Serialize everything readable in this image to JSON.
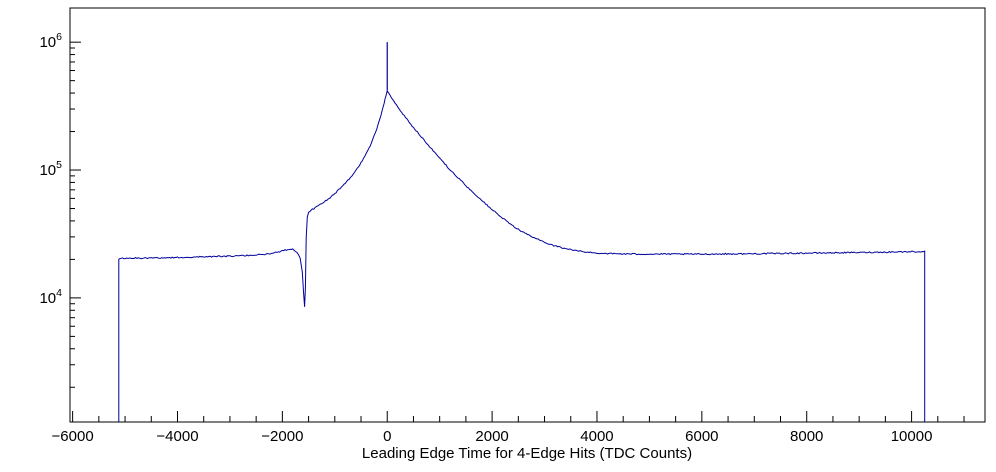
{
  "chart_data": {
    "type": "line",
    "title": "",
    "xlabel": "Leading Edge Time for 4-Edge Hits (TDC Counts)",
    "ylabel": "",
    "y_log": true,
    "xlim": [
      -6050,
      11400
    ],
    "ylim": [
      1070,
      1850000
    ],
    "grid": false,
    "legend": "none",
    "line_color": "#00009a",
    "frame_color": "#000000",
    "x_ticks": [
      {
        "v": -6000,
        "label": "−6000"
      },
      {
        "v": -4000,
        "label": "−4000"
      },
      {
        "v": -2000,
        "label": "−2000"
      },
      {
        "v": 0,
        "label": "0"
      },
      {
        "v": 2000,
        "label": "2000"
      },
      {
        "v": 4000,
        "label": "4000"
      },
      {
        "v": 6000,
        "label": "6000"
      },
      {
        "v": 8000,
        "label": "8000"
      },
      {
        "v": 10000,
        "label": "10000"
      }
    ],
    "x_minor_step": 500,
    "y_ticks": [
      {
        "v": 10000,
        "mant": "10",
        "exp": "4"
      },
      {
        "v": 100000,
        "mant": "10",
        "exp": "5"
      },
      {
        "v": 1000000,
        "mant": "10",
        "exp": "6"
      }
    ],
    "spike": {
      "x": 0,
      "y": 1000000
    },
    "series": [
      {
        "name": "leading-edge-time-histogram",
        "x": [
          -5120,
          -5000,
          -4600,
          -4200,
          -3800,
          -3400,
          -3000,
          -2600,
          -2300,
          -2100,
          -1950,
          -1850,
          -1780,
          -1720,
          -1660,
          -1620,
          -1595,
          -1575,
          -1560,
          -1545,
          -1525,
          -1500,
          -1450,
          -1380,
          -1300,
          -1200,
          -1100,
          -1000,
          -900,
          -800,
          -700,
          -600,
          -500,
          -400,
          -300,
          -200,
          -120,
          -60,
          -20,
          0,
          30,
          80,
          150,
          250,
          350,
          450,
          550,
          700,
          850,
          1000,
          1200,
          1400,
          1600,
          1800,
          2000,
          2200,
          2400,
          2600,
          2800,
          3000,
          3200,
          3400,
          3600,
          3800,
          4000,
          4400,
          4800,
          5400,
          6000,
          6800,
          7600,
          8400,
          9200,
          10000,
          10250
        ],
        "y": [
          20200,
          20400,
          20500,
          20600,
          20800,
          21000,
          21200,
          21500,
          22000,
          22800,
          23600,
          24200,
          23800,
          22800,
          20500,
          16000,
          11000,
          8600,
          12000,
          30000,
          43000,
          46500,
          48500,
          50500,
          53000,
          56500,
          60500,
          65500,
          71500,
          78500,
          87500,
          99000,
          114000,
          134000,
          163000,
          210000,
          268000,
          330000,
          390000,
          420000,
          400000,
          370000,
          335000,
          292000,
          258000,
          228000,
          204000,
          172000,
          146000,
          124000,
          100000,
          83000,
          69000,
          58000,
          49000,
          42000,
          36500,
          32500,
          29500,
          27200,
          25500,
          24300,
          23400,
          22800,
          22400,
          22100,
          22000,
          22000,
          22000,
          22100,
          22300,
          22500,
          22700,
          23000,
          23000
        ]
      }
    ]
  }
}
